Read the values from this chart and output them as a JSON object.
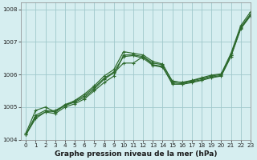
{
  "background_color": "#d6eef0",
  "grid_color": "#a0c8cc",
  "line_color": "#2d6a2d",
  "title": "Graphe pression niveau de la mer (hPa)",
  "xlim": [
    -0.5,
    23
  ],
  "ylim": [
    1004.0,
    1008.2
  ],
  "xticks": [
    0,
    1,
    2,
    3,
    4,
    5,
    6,
    7,
    8,
    9,
    10,
    11,
    12,
    13,
    14,
    15,
    16,
    17,
    18,
    19,
    20,
    21,
    22,
    23
  ],
  "yticks": [
    1004,
    1005,
    1006,
    1007,
    1008
  ],
  "series": [
    [
      1004.15,
      1004.65,
      1004.85,
      1004.9,
      1005.05,
      1005.15,
      1005.3,
      1005.55,
      1005.85,
      1006.05,
      1006.35,
      1006.35,
      1006.55,
      1006.35,
      1006.3,
      1005.8,
      1005.75,
      1005.8,
      1005.88,
      1005.95,
      1006.0,
      1006.6,
      1007.45,
      1007.85
    ],
    [
      1004.15,
      1004.7,
      1004.85,
      1004.8,
      1005.0,
      1005.1,
      1005.25,
      1005.5,
      1005.75,
      1005.95,
      1006.6,
      1006.6,
      1006.55,
      1006.3,
      1006.25,
      1005.7,
      1005.7,
      1005.75,
      1005.82,
      1005.9,
      1005.95,
      1006.55,
      1007.4,
      1007.8
    ],
    [
      1004.15,
      1004.75,
      1004.9,
      1004.85,
      1005.08,
      1005.18,
      1005.35,
      1005.6,
      1005.88,
      1006.08,
      1006.55,
      1006.58,
      1006.5,
      1006.28,
      1006.22,
      1005.74,
      1005.72,
      1005.78,
      1005.84,
      1005.92,
      1005.97,
      1006.58,
      1007.42,
      1007.82
    ],
    [
      1004.2,
      1004.9,
      1005.0,
      1004.85,
      1005.05,
      1005.2,
      1005.4,
      1005.65,
      1005.95,
      1006.15,
      1006.7,
      1006.65,
      1006.6,
      1006.4,
      1006.32,
      1005.78,
      1005.76,
      1005.82,
      1005.9,
      1005.98,
      1006.02,
      1006.65,
      1007.5,
      1007.92
    ]
  ]
}
